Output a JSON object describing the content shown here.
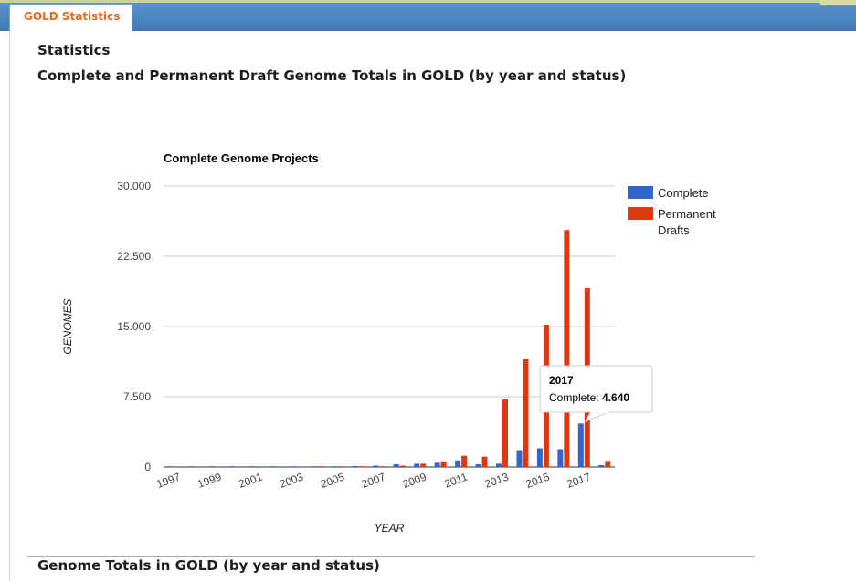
{
  "tab": {
    "label": "GOLD Statistics"
  },
  "page": {
    "heading": "Statistics",
    "subheading": "Complete and Permanent Draft Genome Totals in GOLD (by year and status)",
    "bottom_heading": "Genome Totals in GOLD (by year and status)"
  },
  "chart_data": {
    "type": "bar",
    "title": "Complete Genome Projects",
    "xlabel": "YEAR",
    "ylabel": "GENOMES",
    "categories": [
      "1997",
      "1998",
      "1999",
      "2000",
      "2001",
      "2002",
      "2003",
      "2004",
      "2005",
      "2006",
      "2007",
      "2008",
      "2009",
      "2010",
      "2011",
      "2012",
      "2013",
      "2014",
      "2015",
      "2016",
      "2017",
      "2018"
    ],
    "x_tick_labels": [
      "1997",
      "1999",
      "2001",
      "2003",
      "2005",
      "2007",
      "2009",
      "2011",
      "2013",
      "2015",
      "2017"
    ],
    "ylim": [
      0,
      30000
    ],
    "y_ticks": [
      0,
      7500,
      15000,
      22500,
      30000
    ],
    "y_tick_labels": [
      "0",
      "7.500",
      "15.000",
      "22.500",
      "30.000"
    ],
    "grid": true,
    "legend_position": "right",
    "series": [
      {
        "name": "Complete",
        "color": "#3366cc",
        "values": [
          3,
          8,
          10,
          15,
          25,
          35,
          40,
          50,
          60,
          100,
          150,
          300,
          350,
          450,
          700,
          300,
          350,
          1800,
          2000,
          1900,
          4640,
          200
        ]
      },
      {
        "name": "Permanent Drafts",
        "color": "#dc3912",
        "values": [
          0,
          0,
          0,
          0,
          0,
          0,
          0,
          10,
          20,
          40,
          80,
          150,
          350,
          600,
          1200,
          1100,
          7200,
          11500,
          15200,
          25300,
          19100,
          650
        ]
      }
    ],
    "legend_labels": [
      {
        "color": "#3366cc",
        "lines": [
          "Complete"
        ]
      },
      {
        "color": "#dc3912",
        "lines": [
          "Permanent",
          "Drafts"
        ]
      }
    ],
    "tooltip": {
      "title": "2017",
      "label": "Complete: ",
      "value": "4.640"
    }
  }
}
